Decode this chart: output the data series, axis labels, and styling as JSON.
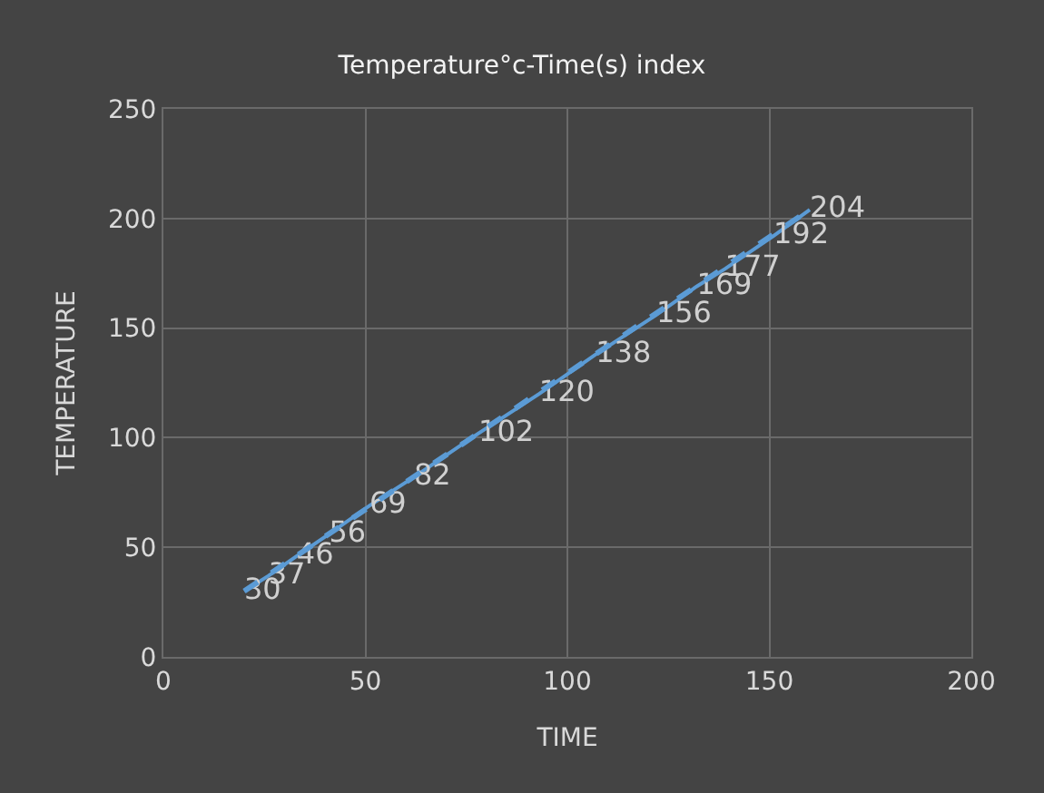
{
  "chart_data": {
    "type": "line",
    "title": "Temperature°c-Time(s) index",
    "xlabel": "TIME",
    "ylabel": "TEMPERATURE",
    "xlim": [
      0,
      200
    ],
    "xticks": [
      0,
      50,
      100,
      150,
      200
    ],
    "ylim": [
      0,
      250
    ],
    "yticks": [
      0,
      50,
      100,
      150,
      200,
      250
    ],
    "grid": true,
    "legend": false,
    "marker": "none",
    "series": [
      {
        "color": "#5b9bd5",
        "x": [
          20,
          26,
          33,
          41,
          51,
          62,
          78,
          93,
          107,
          122,
          132,
          139,
          151,
          160
        ],
        "values": [
          30,
          37,
          46,
          56,
          69,
          82,
          102,
          120,
          138,
          156,
          169,
          177,
          192,
          204
        ],
        "value_labels": [
          "30",
          "37",
          "46",
          "56",
          "69",
          "82",
          "102",
          "120",
          "138",
          "156",
          "169",
          "177",
          "192",
          "204"
        ]
      },
      {
        "type": "line",
        "line_style": "dashed",
        "color": "#5b9bd5",
        "x": [
          20,
          160
        ],
        "values": [
          30,
          204
        ]
      }
    ]
  }
}
